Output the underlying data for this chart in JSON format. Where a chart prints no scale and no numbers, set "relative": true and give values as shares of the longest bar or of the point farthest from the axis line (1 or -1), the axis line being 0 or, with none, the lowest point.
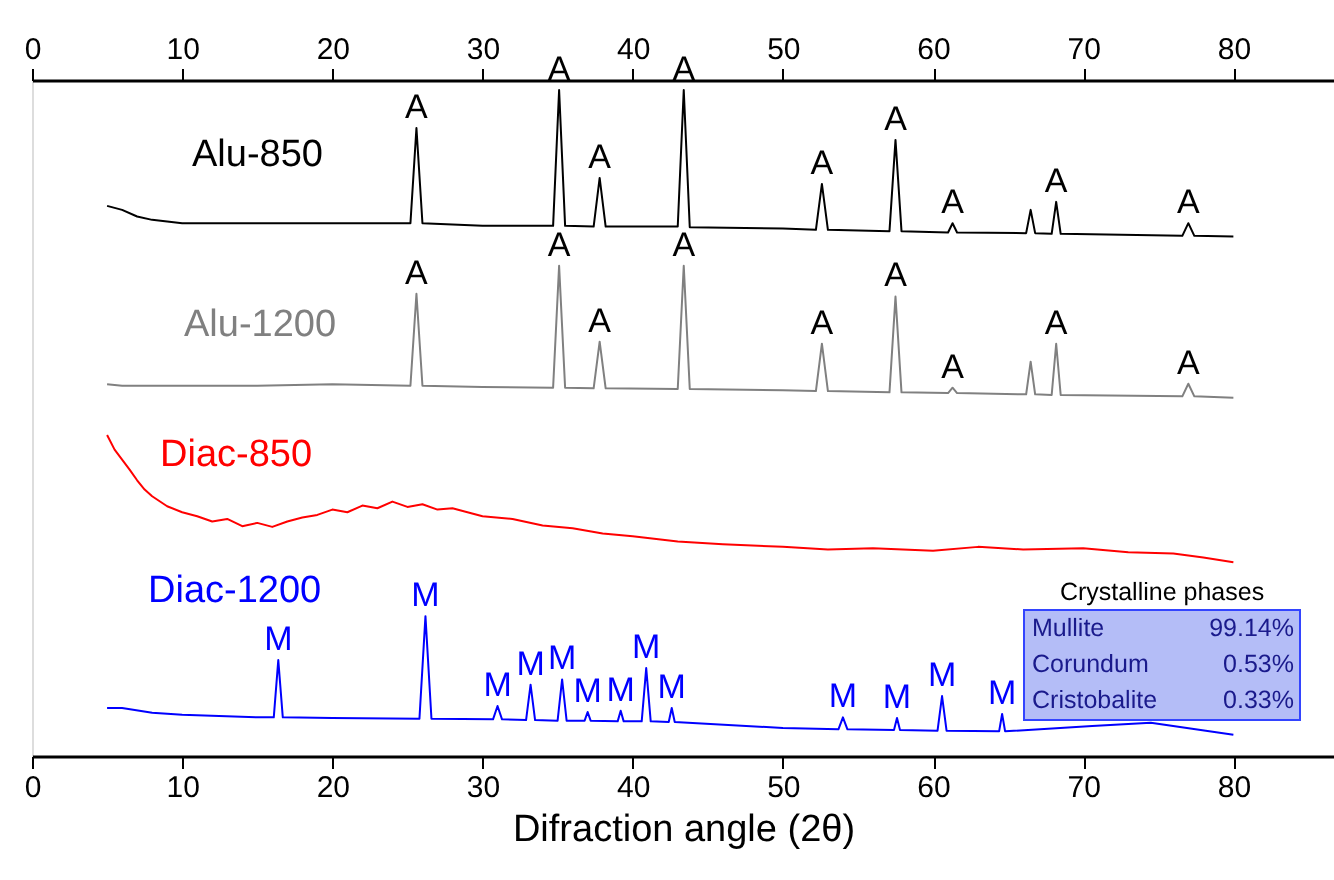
{
  "chart_data": {
    "type": "line",
    "relative": true,
    "xlabel": "Difraction angle (2θ)",
    "xlim": [
      0,
      86.7
    ],
    "xticks": [
      0,
      10,
      20,
      30,
      40,
      50,
      60,
      70,
      80
    ],
    "x2lim": [
      0,
      86.7
    ],
    "x2ticks": [
      0,
      10,
      20,
      30,
      40,
      50,
      60,
      70,
      80
    ],
    "grid": false,
    "series": [
      {
        "name": "Alu-850",
        "color": "#000000",
        "x": [
          5,
          6,
          7,
          8,
          10,
          15,
          20,
          25.2,
          25.6,
          26.0,
          30,
          34.7,
          35.1,
          35.5,
          37.4,
          37.8,
          38.2,
          43.0,
          43.4,
          43.8,
          50,
          52.2,
          52.6,
          53.0,
          57.1,
          57.5,
          57.9,
          61.0,
          61.3,
          61.6,
          66.2,
          66.5,
          66.8,
          67.9,
          68.2,
          68.5,
          76.6,
          77,
          77.4,
          80
        ],
        "values": [
          0.826,
          0.82,
          0.81,
          0.805,
          0.8,
          0.8,
          0.8,
          0.8,
          0.943,
          0.8,
          0.796,
          0.796,
          1.0,
          0.796,
          0.795,
          0.868,
          0.795,
          0.795,
          1.0,
          0.794,
          0.792,
          0.79,
          0.859,
          0.79,
          0.788,
          0.925,
          0.788,
          0.786,
          0.8,
          0.786,
          0.785,
          0.82,
          0.785,
          0.784,
          0.832,
          0.784,
          0.781,
          0.8,
          0.781,
          0.78
        ]
      },
      {
        "name": "Alu-1200",
        "color": "#808080",
        "x": [
          5,
          6,
          7,
          8,
          10,
          15,
          20,
          25.2,
          25.6,
          26.0,
          30,
          34.7,
          35.1,
          35.5,
          37.4,
          37.8,
          38.2,
          43.0,
          43.4,
          43.8,
          50,
          52.2,
          52.6,
          53.0,
          57.1,
          57.5,
          57.9,
          61.0,
          61.3,
          61.6,
          66.2,
          66.5,
          66.8,
          67.9,
          68.2,
          68.5,
          76.6,
          77,
          77.4,
          80
        ],
        "values": [
          0.558,
          0.556,
          0.556,
          0.556,
          0.556,
          0.556,
          0.558,
          0.556,
          0.694,
          0.556,
          0.554,
          0.553,
          0.736,
          0.553,
          0.552,
          0.622,
          0.552,
          0.551,
          0.736,
          0.551,
          0.549,
          0.548,
          0.619,
          0.548,
          0.546,
          0.69,
          0.546,
          0.545,
          0.553,
          0.545,
          0.543,
          0.592,
          0.543,
          0.542,
          0.619,
          0.542,
          0.54,
          0.559,
          0.54,
          0.538
        ]
      },
      {
        "name": "Diac-850",
        "color": "#ff0000",
        "x": [
          5,
          5.5,
          6,
          6.5,
          7,
          7.5,
          8,
          9,
          10,
          11,
          12,
          13,
          14,
          15,
          16,
          17,
          18,
          19,
          20,
          21,
          22,
          23,
          24,
          25,
          26,
          27,
          28,
          30,
          32,
          34,
          36,
          38,
          40,
          43,
          46,
          50,
          53,
          56,
          60,
          63,
          66,
          70,
          73,
          76,
          78,
          80
        ],
        "values": [
          0.482,
          0.46,
          0.445,
          0.43,
          0.414,
          0.4,
          0.39,
          0.375,
          0.366,
          0.36,
          0.352,
          0.356,
          0.345,
          0.35,
          0.344,
          0.352,
          0.358,
          0.362,
          0.37,
          0.366,
          0.376,
          0.372,
          0.382,
          0.374,
          0.378,
          0.37,
          0.372,
          0.36,
          0.356,
          0.346,
          0.342,
          0.334,
          0.33,
          0.322,
          0.318,
          0.314,
          0.31,
          0.312,
          0.308,
          0.314,
          0.31,
          0.312,
          0.306,
          0.304,
          0.298,
          0.291
        ]
      },
      {
        "name": "Diac-1200",
        "color": "#0000ff",
        "x": [
          5,
          6,
          8,
          10,
          15,
          16.1,
          16.4,
          16.7,
          20,
          25.8,
          26.2,
          26.6,
          30.7,
          31,
          31.3,
          32.9,
          33.2,
          33.5,
          35,
          35.3,
          35.6,
          36.8,
          37,
          37.2,
          39,
          39.2,
          39.4,
          40.6,
          40.9,
          41.2,
          42.4,
          42.6,
          42.8,
          50,
          53.7,
          54,
          54.3,
          57.4,
          57.6,
          57.8,
          60.3,
          60.6,
          60.9,
          64.4,
          64.6,
          64.8,
          70.6,
          74.5,
          80
        ],
        "values": [
          0.072,
          0.072,
          0.065,
          0.062,
          0.058,
          0.058,
          0.144,
          0.058,
          0.057,
          0.056,
          0.21,
          0.056,
          0.055,
          0.075,
          0.055,
          0.054,
          0.107,
          0.054,
          0.053,
          0.115,
          0.053,
          0.053,
          0.066,
          0.053,
          0.052,
          0.068,
          0.052,
          0.052,
          0.132,
          0.052,
          0.051,
          0.072,
          0.051,
          0.042,
          0.04,
          0.058,
          0.04,
          0.039,
          0.057,
          0.039,
          0.038,
          0.09,
          0.038,
          0.037,
          0.063,
          0.037,
          0.045,
          0.05,
          0.032
        ]
      }
    ],
    "annotations": [
      {
        "text": "A",
        "x": 25.6,
        "y": 0.943
      },
      {
        "text": "A",
        "x": 35.1,
        "y": 1.0
      },
      {
        "text": "A",
        "x": 37.8,
        "y": 0.868
      },
      {
        "text": "A",
        "x": 43.4,
        "y": 1.0
      },
      {
        "text": "A",
        "x": 52.6,
        "y": 0.859
      },
      {
        "text": "A",
        "x": 57.5,
        "y": 0.925
      },
      {
        "text": "A",
        "x": 61.3,
        "y": 0.8
      },
      {
        "text": "A",
        "x": 68.2,
        "y": 0.832
      },
      {
        "text": "A",
        "x": 77,
        "y": 0.8
      },
      {
        "text": "A",
        "x": 25.6,
        "y": 0.694
      },
      {
        "text": "A",
        "x": 35.1,
        "y": 0.736
      },
      {
        "text": "A",
        "x": 37.8,
        "y": 0.622
      },
      {
        "text": "A",
        "x": 43.4,
        "y": 0.736
      },
      {
        "text": "A",
        "x": 52.6,
        "y": 0.619
      },
      {
        "text": "A",
        "x": 57.5,
        "y": 0.69
      },
      {
        "text": "A",
        "x": 61.3,
        "y": 0.553
      },
      {
        "text": "A",
        "x": 68.2,
        "y": 0.619
      },
      {
        "text": "A",
        "x": 77,
        "y": 0.559
      },
      {
        "text": "M",
        "x": 16.4,
        "y": 0.144
      },
      {
        "text": "M",
        "x": 26.2,
        "y": 0.21
      },
      {
        "text": "M",
        "x": 31,
        "y": 0.075
      },
      {
        "text": "M",
        "x": 33.2,
        "y": 0.107
      },
      {
        "text": "M",
        "x": 35.3,
        "y": 0.115
      },
      {
        "text": "M",
        "x": 37,
        "y": 0.066
      },
      {
        "text": "M",
        "x": 39.2,
        "y": 0.068
      },
      {
        "text": "M",
        "x": 40.9,
        "y": 0.132
      },
      {
        "text": "M",
        "x": 42.6,
        "y": 0.072
      },
      {
        "text": "M",
        "x": 54,
        "y": 0.058
      },
      {
        "text": "M",
        "x": 57.6,
        "y": 0.057
      },
      {
        "text": "M",
        "x": 60.6,
        "y": 0.09
      },
      {
        "text": "M",
        "x": 64.6,
        "y": 0.063
      },
      "Crystalline phases",
      "Mullite",
      "99.14%",
      "Corundum",
      "0.53%",
      "Cristobalite",
      "0.33%"
    ]
  }
}
